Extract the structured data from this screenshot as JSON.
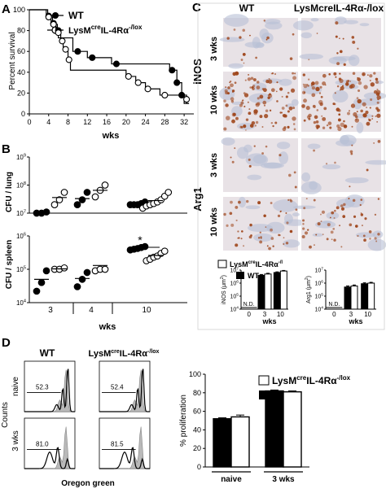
{
  "panel_letters": {
    "a": "A",
    "b": "B",
    "c": "C",
    "d": "D"
  },
  "colors": {
    "wt": "#000000",
    "ko": "#ffffff",
    "tissue_blue": "#b7bfd6",
    "stain_brown": "#a0481e"
  },
  "chart_data": [
    {
      "id": "A",
      "type": "line",
      "subtype": "kaplan-meier",
      "ylabel": "Percent survival",
      "xlabel": "wks",
      "xlim": [
        0,
        34
      ],
      "ylim": [
        0,
        100
      ],
      "xticks": [
        "0",
        "4",
        "8",
        "12",
        "16",
        "20",
        "24",
        "28",
        "32"
      ],
      "yticks": [
        "0",
        "20",
        "40",
        "60",
        "80",
        "100"
      ],
      "legend": {
        "placement": "top-right",
        "wt": "WT",
        "ko_prefix": "LysM",
        "ko_sup": "cre",
        "ko_rest": "IL-4Rα",
        "ko_sup2": "-/lox"
      },
      "series": [
        {
          "name": "WT",
          "steps": [
            [
              0,
              100
            ],
            [
              3.5,
              100
            ],
            [
              3.5,
              94
            ],
            [
              4.5,
              94
            ],
            [
              4.5,
              87
            ],
            [
              5.5,
              87
            ],
            [
              5.5,
              80
            ],
            [
              6,
              80
            ],
            [
              6,
              73
            ],
            [
              9,
              73
            ],
            [
              9,
              60
            ],
            [
              12,
              60
            ],
            [
              12,
              54
            ],
            [
              17,
              54
            ],
            [
              17,
              48
            ],
            [
              29,
              48
            ],
            [
              29,
              42
            ],
            [
              30.5,
              42
            ],
            [
              30.5,
              30
            ],
            [
              31.5,
              30
            ],
            [
              31.5,
              18
            ],
            [
              32,
              18
            ],
            [
              32,
              10
            ],
            [
              33,
              10
            ]
          ],
          "markers": [
            [
              4,
              94
            ],
            [
              5,
              87
            ],
            [
              6,
              80
            ],
            [
              10,
              60
            ],
            [
              13,
              54
            ],
            [
              18,
              48
            ],
            [
              29.5,
              42
            ],
            [
              30.5,
              30
            ],
            [
              31.5,
              18
            ]
          ]
        },
        {
          "name": "LysMcreIL-4Rα-/lox",
          "steps": [
            [
              0,
              100
            ],
            [
              3.8,
              100
            ],
            [
              3.8,
              93
            ],
            [
              4.8,
              93
            ],
            [
              4.8,
              86
            ],
            [
              5.8,
              86
            ],
            [
              5.8,
              78
            ],
            [
              6.5,
              78
            ],
            [
              6.5,
              70
            ],
            [
              7,
              70
            ],
            [
              7,
              62
            ],
            [
              8,
              62
            ],
            [
              8,
              52
            ],
            [
              8.5,
              52
            ],
            [
              8.5,
              42
            ],
            [
              20,
              42
            ],
            [
              20,
              36
            ],
            [
              22,
              36
            ],
            [
              22,
              30
            ],
            [
              24,
              30
            ],
            [
              24,
              24
            ],
            [
              27,
              24
            ],
            [
              27,
              18
            ],
            [
              32.5,
              18
            ],
            [
              32.5,
              10
            ],
            [
              33,
              10
            ]
          ],
          "markers": [
            [
              4,
              93
            ],
            [
              5,
              86
            ],
            [
              6,
              78
            ],
            [
              6.8,
              70
            ],
            [
              7.5,
              62
            ],
            [
              8.2,
              52
            ],
            [
              20.5,
              36
            ],
            [
              22.5,
              30
            ],
            [
              24.5,
              24
            ],
            [
              28,
              18
            ],
            [
              32.5,
              14
            ]
          ]
        }
      ]
    },
    {
      "id": "B-lung",
      "type": "scatter",
      "ylabel": "CFU / lung",
      "yscale": "log",
      "ylim": [
        10000000,
        1000000000
      ],
      "yticks": [
        {
          "b": "10",
          "e": "7"
        },
        {
          "b": "10",
          "e": "8"
        },
        {
          "b": "10",
          "e": "9"
        }
      ],
      "groups": [
        "3",
        "4",
        "10"
      ],
      "series": [
        {
          "name": "WT",
          "points": [
            [
              0,
              10000000
            ],
            [
              0,
              10000000
            ],
            [
              0,
              11000000
            ],
            [
              1,
              20000000
            ],
            [
              1,
              30000000
            ],
            [
              1,
              55000000
            ],
            [
              2,
              20000000
            ],
            [
              2,
              20000000
            ],
            [
              2,
              20000000
            ],
            [
              2,
              22000000
            ],
            [
              2,
              25000000
            ]
          ],
          "means": [
            10300000,
            33000000,
            21000000
          ]
        },
        {
          "name": "LysMcreIL-4Rα-/lox",
          "points": [
            [
              0,
              20000000
            ],
            [
              0,
              30000000
            ],
            [
              0,
              55000000
            ],
            [
              1,
              38000000
            ],
            [
              1,
              65000000
            ],
            [
              1,
              100000000
            ],
            [
              2,
              15000000
            ],
            [
              2,
              18000000
            ],
            [
              2,
              20000000
            ],
            [
              2,
              22000000
            ],
            [
              2,
              25000000
            ],
            [
              2,
              30000000
            ],
            [
              2,
              40000000
            ],
            [
              2,
              55000000
            ]
          ],
          "means": [
            36000000,
            65000000,
            28000000
          ]
        }
      ]
    },
    {
      "id": "B-spleen",
      "type": "scatter",
      "ylabel": "CFU / spleen",
      "xlabel": "wks",
      "yscale": "log",
      "ylim": [
        10000,
        1000000
      ],
      "yticks": [
        {
          "b": "10",
          "e": "4"
        },
        {
          "b": "10",
          "e": "5"
        },
        {
          "b": "10",
          "e": "6"
        }
      ],
      "groups": [
        "3",
        "4",
        "10"
      ],
      "annotation": "*",
      "series": [
        {
          "name": "WT",
          "points": [
            [
              0,
              22000
            ],
            [
              0,
              40000
            ],
            [
              0,
              90000
            ],
            [
              1,
              30000
            ],
            [
              1,
              50000
            ],
            [
              1,
              80000
            ],
            [
              2,
              380000
            ],
            [
              2,
              400000
            ],
            [
              2,
              420000
            ],
            [
              2,
              450000
            ],
            [
              2,
              480000
            ]
          ],
          "means": [
            50000,
            53000,
            425000
          ]
        },
        {
          "name": "LysMcreIL-4Rα-/lox",
          "points": [
            [
              0,
              100000
            ],
            [
              0,
              100000
            ],
            [
              0,
              110000
            ],
            [
              1,
              90000
            ],
            [
              1,
              100000
            ],
            [
              1,
              100000
            ],
            [
              2,
              180000
            ],
            [
              2,
              200000
            ],
            [
              2,
              230000
            ],
            [
              2,
              250000
            ],
            [
              2,
              300000
            ],
            [
              2,
              350000
            ]
          ],
          "means": [
            103000,
            130000,
            260000
          ]
        }
      ]
    },
    {
      "id": "C-iNOS",
      "type": "bar",
      "ylabel": "iNOS",
      "yunit_base": "μm",
      "yunit_exp": "2",
      "xlabel": "wks",
      "yscale": "log",
      "ylim": [
        10000,
        10000000
      ],
      "yticks": [
        {
          "b": "10",
          "e": "4"
        },
        {
          "b": "10",
          "e": "5"
        },
        {
          "b": "10",
          "e": "6"
        },
        {
          "b": "10",
          "e": "7"
        }
      ],
      "categories": [
        "0",
        "3",
        "10"
      ],
      "nd_label": "N.D.",
      "series": [
        {
          "name": "WT",
          "values": [
            null,
            4000000,
            6500000
          ],
          "errors": [
            0,
            600000,
            800000
          ]
        },
        {
          "name": "LysMcreIL-4Rα-/l",
          "values": [
            null,
            5000000,
            8500000
          ],
          "errors": [
            0,
            700000,
            900000
          ]
        }
      ]
    },
    {
      "id": "C-Arg1",
      "type": "bar",
      "ylabel": "Arg1",
      "yunit_base": "μm",
      "yunit_exp": "2",
      "xlabel": "wks",
      "yscale": "log",
      "ylim": [
        10000,
        10000000
      ],
      "yticks": [
        {
          "b": "10",
          "e": "4"
        },
        {
          "b": "10",
          "e": "5"
        },
        {
          "b": "10",
          "e": "6"
        },
        {
          "b": "10",
          "e": "7"
        }
      ],
      "categories": [
        "0",
        "3",
        "10"
      ],
      "nd_label": "N.D.",
      "series": [
        {
          "name": "WT",
          "values": [
            null,
            500000,
            900000
          ],
          "errors": [
            0,
            100000,
            150000
          ]
        },
        {
          "name": "LysMcreIL-4Rα-/l",
          "values": [
            null,
            600000,
            1000000
          ],
          "errors": [
            0,
            120000,
            150000
          ]
        }
      ]
    },
    {
      "id": "D-flow",
      "type": "table",
      "ylabel": "Counts",
      "xlabel": "Oregon green",
      "col_headers": [
        "WT",
        "LysMcreIL-4Rα-/lox"
      ],
      "row_headers": [
        "naive",
        "3 wks"
      ],
      "values": [
        [
          "52.3",
          "52.4"
        ],
        [
          "81.0",
          "81.5"
        ]
      ]
    },
    {
      "id": "D-bar",
      "type": "bar",
      "ylabel": "% proliferation",
      "ylim": [
        0,
        100
      ],
      "yticks": [
        "0",
        "20",
        "40",
        "60",
        "80",
        "100"
      ],
      "categories": [
        "naive",
        "3 wks"
      ],
      "series": [
        {
          "name": "WT",
          "values": [
            52,
            82
          ],
          "errors": [
            1,
            1
          ]
        },
        {
          "name": "LysMcreIL-4Rα-/lox",
          "values": [
            54,
            81
          ],
          "errors": [
            2,
            1
          ]
        }
      ]
    }
  ],
  "panel_c": {
    "col_headers": [
      "WT",
      "LysMcreIL-4Rα-/lox"
    ],
    "stains": [
      "iNOS",
      "Arg1"
    ],
    "rows": [
      "3 wks",
      "10 wks"
    ]
  }
}
